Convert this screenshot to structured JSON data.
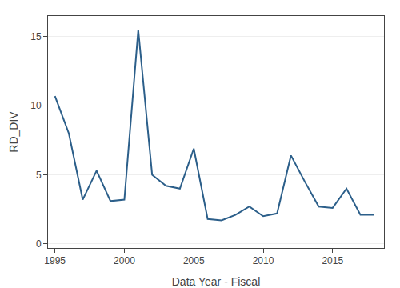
{
  "chart_data": {
    "type": "line",
    "x": [
      1995,
      1996,
      1997,
      1998,
      1999,
      2000,
      2001,
      2002,
      2003,
      2004,
      2005,
      2006,
      2007,
      2008,
      2009,
      2010,
      2011,
      2012,
      2013,
      2014,
      2015,
      2016,
      2017,
      2018
    ],
    "values": [
      10.7,
      8.0,
      3.2,
      5.3,
      3.1,
      3.2,
      15.5,
      5.0,
      4.2,
      4.0,
      6.9,
      1.8,
      1.7,
      2.1,
      2.7,
      2.0,
      2.2,
      6.4,
      4.5,
      2.7,
      2.6,
      4.0,
      2.1,
      2.1
    ],
    "color": "#2c5f8a",
    "xlabel": "Data Year - Fiscal",
    "ylabel": "RD_DIV",
    "xlim": [
      1994.5,
      2018.7
    ],
    "ylim": [
      -0.3,
      16.5
    ],
    "xticks": [
      1995,
      2000,
      2005,
      2010,
      2015
    ],
    "yticks": [
      0,
      5,
      10,
      15
    ],
    "grid": "y"
  }
}
